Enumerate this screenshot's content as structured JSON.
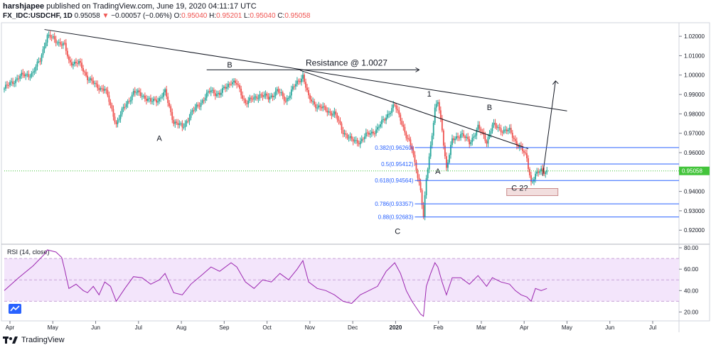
{
  "header": {
    "author": "harshjapee",
    "published": "published on TradingView.com, June 19, 2020 04:11:17 UTC",
    "symbol": "FX_IDC:USDCHF, 1D",
    "last": "0.95058",
    "arrow": "▼",
    "change": "−0.00057 (−0.06%)",
    "o_label": "O:",
    "o": "0.95040",
    "h_label": "H:",
    "h": "0.95201",
    "l_label": "L:",
    "l": "0.95040",
    "c_label": "C:",
    "c": "0.95058"
  },
  "footer": {
    "brand": "TradingView"
  },
  "colors": {
    "up": "#26a69a",
    "down": "#ef5350",
    "rsi": "#9c27b0",
    "rsi_band": "#f3e5fb",
    "fib": "#2962ff",
    "price_tag": "#43c43b"
  },
  "chart_data": [
    {
      "type": "candlestick",
      "symbol": "FX_IDC:USDCHF",
      "interval": "1D",
      "ylim": [
        0.9135,
        1.027
      ],
      "y_ticks": [
        "1.02000",
        "1.01000",
        "1.00000",
        "0.99000",
        "0.98000",
        "0.97000",
        "0.96000",
        "0.95000",
        "0.94000",
        "0.93000",
        "0.92000"
      ],
      "x_ticks": [
        "Apr",
        "May",
        "Jun",
        "Jul",
        "Aug",
        "Sep",
        "Oct",
        "Nov",
        "Dec",
        "2020",
        "Feb",
        "Mar",
        "Apr",
        "May",
        "Jun",
        "Jul"
      ],
      "last_price_label": "0.95058",
      "close_path": [
        {
          "x": 0,
          "y": 0.993
        },
        {
          "x": 10,
          "y": 0.999
        },
        {
          "x": 20,
          "y": 1.001
        },
        {
          "x": 25,
          "y": 1.008
        },
        {
          "x": 28,
          "y": 1.016
        },
        {
          "x": 30,
          "y": 1.02
        },
        {
          "x": 36,
          "y": 1.018
        },
        {
          "x": 42,
          "y": 1.015
        },
        {
          "x": 45,
          "y": 1.007
        },
        {
          "x": 52,
          "y": 1.006
        },
        {
          "x": 58,
          "y": 0.999
        },
        {
          "x": 64,
          "y": 0.994
        },
        {
          "x": 70,
          "y": 0.993
        },
        {
          "x": 74,
          "y": 0.984
        },
        {
          "x": 78,
          "y": 0.975
        },
        {
          "x": 84,
          "y": 0.984
        },
        {
          "x": 90,
          "y": 0.991
        },
        {
          "x": 96,
          "y": 0.99
        },
        {
          "x": 102,
          "y": 0.986
        },
        {
          "x": 108,
          "y": 0.988
        },
        {
          "x": 112,
          "y": 0.991
        },
        {
          "x": 118,
          "y": 0.976
        },
        {
          "x": 124,
          "y": 0.973
        },
        {
          "x": 130,
          "y": 0.98
        },
        {
          "x": 138,
          "y": 0.987
        },
        {
          "x": 144,
          "y": 0.992
        },
        {
          "x": 150,
          "y": 0.99
        },
        {
          "x": 158,
          "y": 0.997
        },
        {
          "x": 162,
          "y": 0.995
        },
        {
          "x": 168,
          "y": 0.986
        },
        {
          "x": 172,
          "y": 0.987
        },
        {
          "x": 178,
          "y": 0.99
        },
        {
          "x": 184,
          "y": 0.988
        },
        {
          "x": 190,
          "y": 0.992
        },
        {
          "x": 196,
          "y": 0.987
        },
        {
          "x": 202,
          "y": 0.994
        },
        {
          "x": 208,
          "y": 1.0
        },
        {
          "x": 212,
          "y": 0.988
        },
        {
          "x": 218,
          "y": 0.984
        },
        {
          "x": 224,
          "y": 0.982
        },
        {
          "x": 230,
          "y": 0.98
        },
        {
          "x": 236,
          "y": 0.971
        },
        {
          "x": 242,
          "y": 0.966
        },
        {
          "x": 248,
          "y": 0.966
        },
        {
          "x": 254,
          "y": 0.97
        },
        {
          "x": 260,
          "y": 0.972
        },
        {
          "x": 266,
          "y": 0.979
        },
        {
          "x": 272,
          "y": 0.984
        },
        {
          "x": 276,
          "y": 0.978
        },
        {
          "x": 280,
          "y": 0.968
        },
        {
          "x": 284,
          "y": 0.962
        },
        {
          "x": 287,
          "y": 0.952
        },
        {
          "x": 290,
          "y": 0.94
        },
        {
          "x": 292,
          "y": 0.926
        },
        {
          "x": 294,
          "y": 0.947
        },
        {
          "x": 297,
          "y": 0.964
        },
        {
          "x": 300,
          "y": 0.982
        },
        {
          "x": 302,
          "y": 0.986
        },
        {
          "x": 305,
          "y": 0.972
        },
        {
          "x": 308,
          "y": 0.952
        },
        {
          "x": 312,
          "y": 0.966
        },
        {
          "x": 318,
          "y": 0.97
        },
        {
          "x": 324,
          "y": 0.965
        },
        {
          "x": 330,
          "y": 0.973
        },
        {
          "x": 336,
          "y": 0.966
        },
        {
          "x": 340,
          "y": 0.974
        },
        {
          "x": 346,
          "y": 0.972
        },
        {
          "x": 352,
          "y": 0.971
        },
        {
          "x": 356,
          "y": 0.966
        },
        {
          "x": 360,
          "y": 0.962
        },
        {
          "x": 364,
          "y": 0.957
        },
        {
          "x": 367,
          "y": 0.945
        },
        {
          "x": 370,
          "y": 0.948
        },
        {
          "x": 374,
          "y": 0.951
        },
        {
          "x": 378,
          "y": 0.9506
        }
      ],
      "annotations": {
        "waves": [
          {
            "label": "A",
            "x": 108,
            "y": 0.966
          },
          {
            "label": "B",
            "x": 157,
            "y": 1.004
          },
          {
            "label": "C",
            "x": 274,
            "y": 0.918
          },
          {
            "label": "1",
            "x": 296,
            "y": 0.989
          },
          {
            "label": "A",
            "x": 302,
            "y": 0.949
          },
          {
            "label": "B",
            "x": 338,
            "y": 0.982
          },
          {
            "label": "C 2?",
            "x": 359,
            "y": 0.9405
          }
        ],
        "resistance_label": "Resistance @ 1.0027",
        "fib_levels": [
          {
            "label": "0.382(0.96260)",
            "value": 0.9626
          },
          {
            "label": "0.5(0.95412)",
            "value": 0.95412
          },
          {
            "label": "0.618(0.94564)",
            "value": 0.94564
          },
          {
            "label": "0.786(0.93357)",
            "value": 0.93357
          },
          {
            "label": "0.88(0.92683)",
            "value": 0.92683
          }
        ]
      }
    },
    {
      "type": "line",
      "title": "RSI (14, close)",
      "ylim": [
        13,
        82
      ],
      "y_ticks": [
        "80.00",
        "60.00",
        "40.00",
        "20.00"
      ],
      "band": [
        30,
        70
      ],
      "x": [
        0,
        10,
        20,
        28,
        30,
        36,
        40,
        42,
        45,
        50,
        55,
        58,
        62,
        66,
        70,
        74,
        78,
        84,
        90,
        96,
        102,
        108,
        112,
        118,
        124,
        130,
        138,
        144,
        150,
        158,
        162,
        168,
        174,
        180,
        186,
        192,
        198,
        204,
        208,
        212,
        218,
        224,
        230,
        236,
        242,
        248,
        254,
        260,
        266,
        272,
        276,
        280,
        284,
        287,
        290,
        292,
        294,
        297,
        300,
        302,
        305,
        308,
        312,
        318,
        324,
        330,
        336,
        340,
        346,
        352,
        356,
        360,
        364,
        367,
        370,
        374,
        378
      ],
      "values": [
        40,
        52,
        63,
        74,
        78,
        76,
        71,
        60,
        42,
        46,
        40,
        38,
        44,
        36,
        48,
        44,
        30,
        42,
        53,
        52,
        46,
        50,
        56,
        38,
        36,
        46,
        55,
        62,
        58,
        66,
        62,
        48,
        42,
        50,
        48,
        56,
        50,
        60,
        68,
        48,
        42,
        40,
        36,
        30,
        28,
        36,
        40,
        44,
        58,
        66,
        56,
        40,
        30,
        24,
        18,
        16,
        44,
        56,
        66,
        62,
        48,
        36,
        52,
        52,
        46,
        54,
        44,
        52,
        48,
        46,
        40,
        36,
        34,
        30,
        42,
        40,
        42
      ]
    }
  ]
}
